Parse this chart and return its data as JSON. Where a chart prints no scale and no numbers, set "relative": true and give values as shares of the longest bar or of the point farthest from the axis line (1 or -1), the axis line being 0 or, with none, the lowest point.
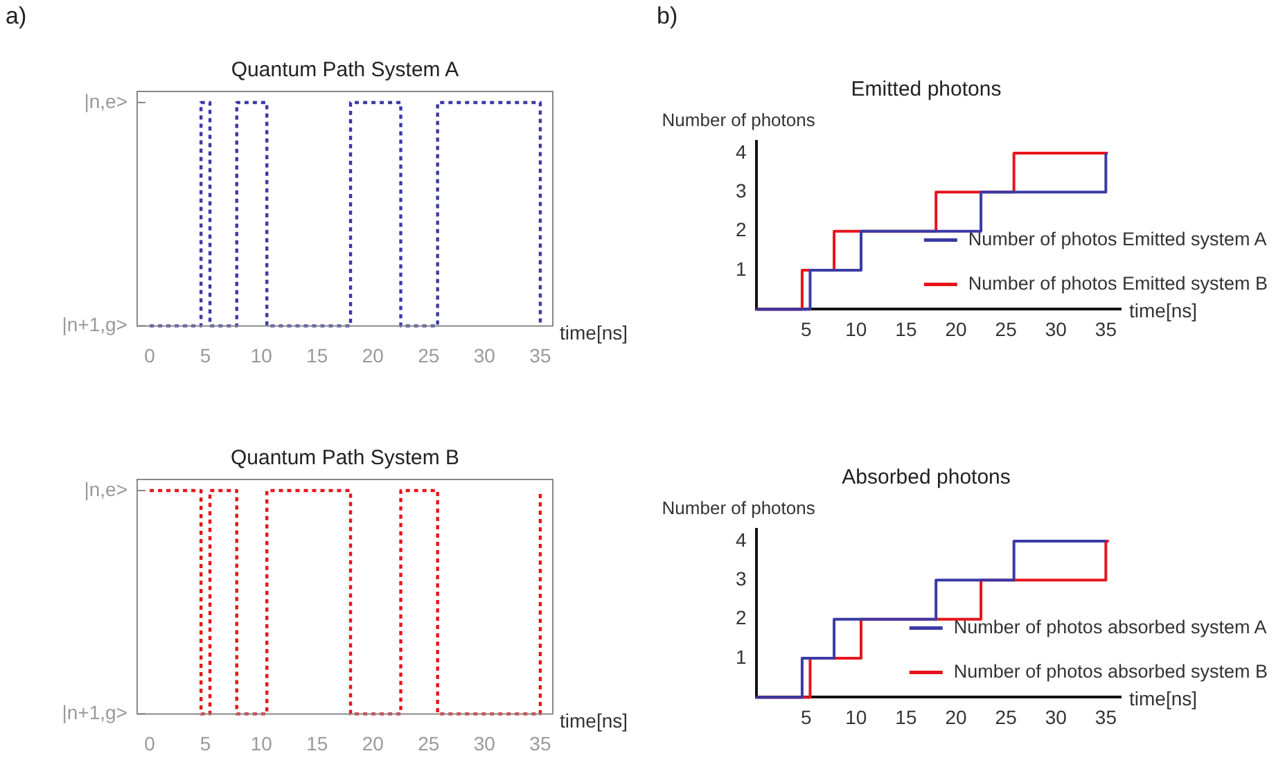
{
  "chart_data": [
    {
      "type": "step",
      "title": "Quantum Path System A",
      "xlabel": "time[ns]",
      "annotations": [
        "a)"
      ],
      "line_style": "dashed",
      "marker": "none",
      "grid": false,
      "legend": false,
      "xlim": [
        -1,
        36
      ],
      "xticks": [
        0,
        5,
        10,
        15,
        20,
        25,
        30,
        35
      ],
      "y_categories": [
        "|n,e>",
        "|n+1,g>"
      ],
      "relative": true,
      "series": [
        {
          "color": "#3a3aa6",
          "x": [
            0,
            4.6,
            5.4,
            7.8,
            10.5,
            18,
            22.5,
            25.8,
            35
          ],
          "values": [
            0,
            1,
            0,
            1,
            0,
            1,
            0,
            1,
            0
          ]
        }
      ]
    },
    {
      "type": "step",
      "title": "Emitted photons",
      "xlabel": "time[ns]",
      "ylabel": "Number of photons",
      "annotations": [
        "b)"
      ],
      "line_style": "solid",
      "marker": "none",
      "grid": false,
      "legend": "bottom right",
      "xlim": [
        0,
        36.5
      ],
      "xticks": [
        5,
        10,
        15,
        20,
        25,
        30,
        35
      ],
      "ylim": [
        0,
        4.3
      ],
      "yticks": [
        1,
        2,
        3,
        4
      ],
      "series": [
        {
          "name": "Number of photos Emitted system A",
          "color": "#3a3aa6",
          "x": [
            0,
            5.4,
            10.5,
            22.5,
            35
          ],
          "values": [
            0,
            1,
            2,
            3,
            4
          ]
        },
        {
          "name": "Number of photos Emitted system B",
          "color": "#e8141c",
          "x": [
            0,
            4.6,
            7.8,
            18,
            25.8,
            35.2
          ],
          "values": [
            0,
            1,
            2,
            3,
            4,
            4
          ]
        }
      ]
    },
    {
      "type": "step",
      "title": "Quantum Path System B",
      "xlabel": "time[ns]",
      "line_style": "dashed",
      "marker": "none",
      "grid": false,
      "legend": false,
      "xlim": [
        -1,
        36
      ],
      "xticks": [
        0,
        5,
        10,
        15,
        20,
        25,
        30,
        35
      ],
      "y_categories": [
        "|n,e>",
        "|n+1,g>"
      ],
      "relative": true,
      "series": [
        {
          "color": "#e8141c",
          "x": [
            0,
            4.6,
            5.4,
            7.8,
            10.5,
            18,
            22.5,
            25.8,
            35
          ],
          "values": [
            1,
            0,
            1,
            0,
            1,
            0,
            1,
            0,
            1
          ]
        }
      ]
    },
    {
      "type": "step",
      "title": "Absorbed photons",
      "xlabel": "time[ns]",
      "ylabel": "Number of photons",
      "line_style": "solid",
      "marker": "none",
      "grid": false,
      "legend": "bottom right",
      "xlim": [
        0,
        36.5
      ],
      "xticks": [
        5,
        10,
        15,
        20,
        25,
        30,
        35
      ],
      "ylim": [
        0,
        4.3
      ],
      "yticks": [
        1,
        2,
        3,
        4
      ],
      "series": [
        {
          "name": "Number of photos absorbed system A",
          "color": "#3a3aa6",
          "x": [
            0,
            4.6,
            7.8,
            18,
            25.8,
            35
          ],
          "values": [
            0,
            1,
            2,
            3,
            4,
            4
          ]
        },
        {
          "name": "Number of photos absorbed system B",
          "color": "#e8141c",
          "x": [
            0,
            5.4,
            10.5,
            22.5,
            35,
            35.3
          ],
          "values": [
            0,
            1,
            2,
            3,
            4,
            4
          ]
        }
      ]
    }
  ]
}
